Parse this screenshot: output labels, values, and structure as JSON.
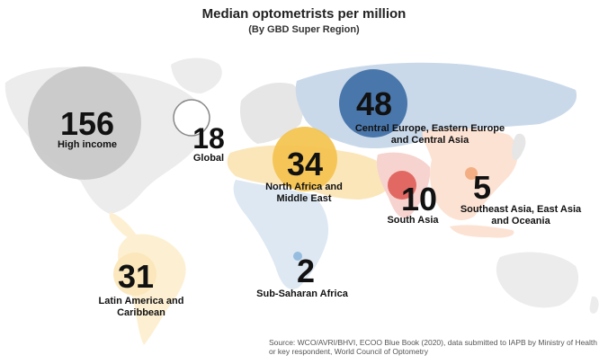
{
  "title": "Median optometrists per million",
  "subtitle": "(By GBD Super Region)",
  "source": "Source: WCO/AVRI/BHVI, ECOO Blue Book (2020), data submitted to IAPB by Ministry of Health or key respondent, World Council of Optometry",
  "chart_data": {
    "type": "bubble-map",
    "title": "Median optometrists per million",
    "subtitle": "(By GBD Super Region)",
    "unit": "optometrists per million",
    "regions": [
      {
        "label": "High income",
        "value": 156,
        "color": "#c9c9c9"
      },
      {
        "label": "Global",
        "value": 18,
        "color": "#ffffff"
      },
      {
        "label": "Central Europe, Eastern Europe and Central Asia",
        "value": 48,
        "color": "#3f6fa5"
      },
      {
        "label": "North Africa and Middle East",
        "value": 34,
        "color": "#f4c34e"
      },
      {
        "label": "South Asia",
        "value": 10,
        "color": "#e0605a"
      },
      {
        "label": "Southeast Asia, East Asia and Oceania",
        "value": 5,
        "color": "#f3a97c"
      },
      {
        "label": "Latin America and Caribbean",
        "value": 31,
        "color": "#fbe6b9"
      },
      {
        "label": "Sub-Saharan Africa",
        "value": 2,
        "color": "#8fb8dd"
      }
    ]
  }
}
